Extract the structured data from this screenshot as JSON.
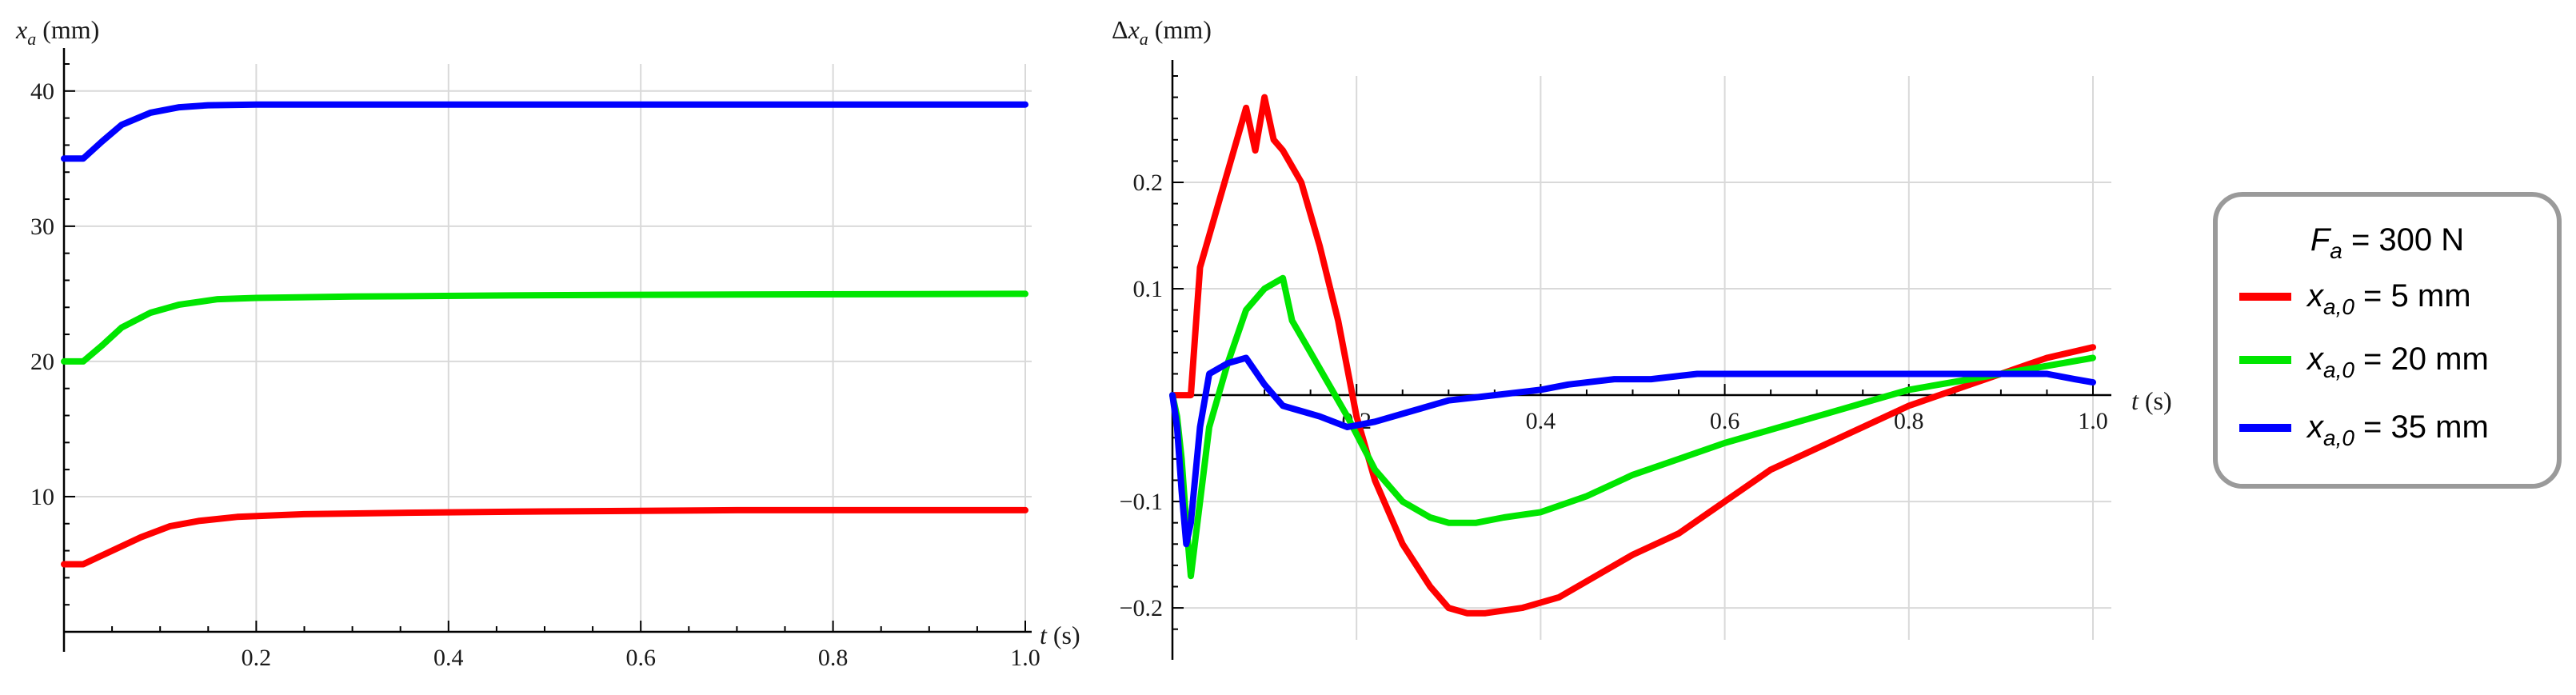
{
  "chart_data": [
    {
      "type": "line",
      "panel": "left",
      "ylabel_var": "x",
      "ylabel_sub": "a",
      "ylabel_unit": " (mm)",
      "xlabel": "t (s)",
      "xlim": [
        0,
        1.0
      ],
      "ylim": [
        0,
        42
      ],
      "xticks": [
        0.2,
        0.4,
        0.6,
        0.8,
        1.0
      ],
      "xtick_labels": [
        "0.2",
        "0.4",
        "0.6",
        "0.8",
        "1.0"
      ],
      "yticks": [
        10,
        20,
        30,
        40
      ],
      "ytick_labels": [
        "10",
        "20",
        "30",
        "40"
      ],
      "grid": true,
      "series": [
        {
          "name": "xa0_5",
          "color": "#ff0000",
          "x": [
            0,
            0.02,
            0.05,
            0.08,
            0.11,
            0.14,
            0.18,
            0.25,
            0.35,
            0.5,
            0.7,
            1.0
          ],
          "y": [
            5.0,
            5.0,
            6.0,
            7.0,
            7.8,
            8.2,
            8.5,
            8.7,
            8.8,
            8.9,
            9.0,
            9.0
          ]
        },
        {
          "name": "xa0_20",
          "color": "#00e600",
          "x": [
            0,
            0.02,
            0.04,
            0.06,
            0.09,
            0.12,
            0.16,
            0.2,
            0.3,
            0.5,
            0.7,
            1.0
          ],
          "y": [
            20.0,
            20.0,
            21.2,
            22.5,
            23.6,
            24.2,
            24.6,
            24.7,
            24.8,
            24.9,
            24.95,
            25.0
          ]
        },
        {
          "name": "xa0_35",
          "color": "#0000ff",
          "x": [
            0,
            0.02,
            0.04,
            0.06,
            0.09,
            0.12,
            0.15,
            0.2,
            0.3,
            0.5,
            1.0
          ],
          "y": [
            35.0,
            35.0,
            36.3,
            37.5,
            38.4,
            38.8,
            38.95,
            39.0,
            39.0,
            39.0,
            39.0
          ]
        }
      ]
    },
    {
      "type": "line",
      "panel": "right",
      "ylabel_var": "Δx",
      "ylabel_sub": "a",
      "ylabel_unit": " (mm)",
      "xlabel": "t (s)",
      "xlim": [
        0,
        1.0
      ],
      "ylim": [
        -0.23,
        0.3
      ],
      "xticks": [
        0.2,
        0.4,
        0.6,
        0.8,
        1.0
      ],
      "xtick_labels": [
        "0.2",
        "0.4",
        "0.6",
        "0.8",
        "1.0"
      ],
      "yticks": [
        -0.2,
        -0.1,
        0.1,
        0.2
      ],
      "ytick_labels": [
        "−0.2",
        "−0.1",
        "0.1",
        "0.2"
      ],
      "grid": true,
      "series": [
        {
          "name": "xa0_5",
          "color": "#ff0000",
          "x": [
            0,
            0.02,
            0.03,
            0.05,
            0.07,
            0.08,
            0.09,
            0.1,
            0.11,
            0.12,
            0.14,
            0.16,
            0.18,
            0.2,
            0.22,
            0.25,
            0.28,
            0.3,
            0.32,
            0.34,
            0.38,
            0.42,
            0.46,
            0.5,
            0.55,
            0.6,
            0.65,
            0.7,
            0.75,
            0.8,
            0.85,
            0.9,
            0.95,
            1.0
          ],
          "y": [
            0,
            0.0,
            0.12,
            0.18,
            0.24,
            0.27,
            0.23,
            0.28,
            0.24,
            0.23,
            0.2,
            0.14,
            0.07,
            -0.02,
            -0.08,
            -0.14,
            -0.18,
            -0.2,
            -0.205,
            -0.205,
            -0.2,
            -0.19,
            -0.17,
            -0.15,
            -0.13,
            -0.1,
            -0.07,
            -0.05,
            -0.03,
            -0.01,
            0.005,
            0.02,
            0.035,
            0.045
          ]
        },
        {
          "name": "xa0_20",
          "color": "#00e600",
          "x": [
            0,
            0.005,
            0.01,
            0.015,
            0.02,
            0.03,
            0.04,
            0.06,
            0.08,
            0.1,
            0.12,
            0.13,
            0.15,
            0.17,
            0.19,
            0.22,
            0.25,
            0.28,
            0.3,
            0.33,
            0.36,
            0.4,
            0.45,
            0.5,
            0.55,
            0.6,
            0.7,
            0.8,
            0.9,
            1.0
          ],
          "y": [
            0,
            -0.02,
            -0.06,
            -0.12,
            -0.17,
            -0.1,
            -0.03,
            0.03,
            0.08,
            0.1,
            0.11,
            0.07,
            0.04,
            0.01,
            -0.02,
            -0.07,
            -0.1,
            -0.115,
            -0.12,
            -0.12,
            -0.115,
            -0.11,
            -0.095,
            -0.075,
            -0.06,
            -0.045,
            -0.02,
            0.005,
            0.02,
            0.035
          ]
        },
        {
          "name": "xa0_35",
          "color": "#0000ff",
          "x": [
            0,
            0.005,
            0.01,
            0.015,
            0.02,
            0.03,
            0.04,
            0.06,
            0.08,
            0.1,
            0.12,
            0.14,
            0.16,
            0.19,
            0.22,
            0.26,
            0.3,
            0.35,
            0.4,
            0.43,
            0.48,
            0.52,
            0.55,
            0.57,
            0.65,
            0.75,
            0.85,
            0.9,
            0.95,
            0.98,
            1.0
          ],
          "y": [
            0,
            -0.03,
            -0.09,
            -0.14,
            -0.12,
            -0.03,
            0.02,
            0.03,
            0.035,
            0.01,
            -0.01,
            -0.015,
            -0.02,
            -0.03,
            -0.025,
            -0.015,
            -0.005,
            0.0,
            0.005,
            0.01,
            0.015,
            0.015,
            0.018,
            0.02,
            0.02,
            0.02,
            0.02,
            0.02,
            0.02,
            0.015,
            0.012
          ]
        }
      ]
    }
  ],
  "legend": {
    "title_var": "F",
    "title_sub": "a",
    "title_rest": " = 300 N",
    "entries": [
      {
        "var": "x",
        "sub": "a,0",
        "rest": " = 5 mm",
        "color": "#ff0000"
      },
      {
        "var": "x",
        "sub": "a,0",
        "rest": " = 20 mm",
        "color": "#00e600"
      },
      {
        "var": "x",
        "sub": "a,0",
        "rest": " = 35 mm",
        "color": "#0000ff"
      }
    ]
  }
}
